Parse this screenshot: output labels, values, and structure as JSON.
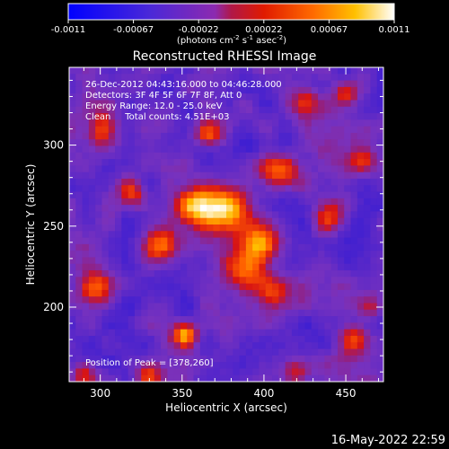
{
  "colorbar": {
    "ticks": [
      "-0.0011",
      "-0.00067",
      "-0.00022",
      "0.00022",
      "0.00067",
      "0.0011"
    ],
    "unit_prefix": "(photons cm",
    "unit_sup1": "-2",
    "unit_mid": " s",
    "unit_sup2": "-1",
    "unit_mid2": " asec",
    "unit_sup3": "-2",
    "unit_suffix": ")"
  },
  "chart_data": {
    "type": "heatmap",
    "title": "Reconstructed RHESSI Image",
    "xlabel": "Heliocentric X (arcsec)",
    "ylabel": "Heliocentric Y (arcsec)",
    "xlim": [
      281,
      473
    ],
    "ylim": [
      154,
      348
    ],
    "xticks": [
      "300",
      "350",
      "400",
      "450"
    ],
    "yticks": [
      "200",
      "250",
      "300"
    ],
    "colormap": "blue-purple-red-yellow-white",
    "color_range": [
      -0.0011,
      0.0011
    ],
    "peak": [
      378,
      260
    ],
    "annotations": [
      "26-Dec-2012 04:43:16.000 to 04:46:28.000",
      "Detectors: 3F 4F 5F 6F 7F 8F, Att 0",
      "Energy Range: 12.0 - 25.0 keV",
      "Clean     Total counts: 4.51E+03"
    ],
    "peak_label": "Position of Peak = [378,260]",
    "sources": [
      {
        "x": 378,
        "y": 260,
        "amp": 1.0,
        "r": 10
      },
      {
        "x": 358,
        "y": 262,
        "amp": 0.75,
        "r": 9
      },
      {
        "x": 395,
        "y": 240,
        "amp": 0.7,
        "r": 9
      },
      {
        "x": 410,
        "y": 282,
        "amp": 0.6,
        "r": 8
      },
      {
        "x": 390,
        "y": 224,
        "amp": 0.65,
        "r": 8
      },
      {
        "x": 405,
        "y": 208,
        "amp": 0.5,
        "r": 7
      },
      {
        "x": 335,
        "y": 238,
        "amp": 0.55,
        "r": 7
      },
      {
        "x": 352,
        "y": 183,
        "amp": 0.8,
        "r": 5
      },
      {
        "x": 296,
        "y": 212,
        "amp": 0.6,
        "r": 7
      },
      {
        "x": 290,
        "y": 158,
        "amp": 0.55,
        "r": 6
      },
      {
        "x": 330,
        "y": 158,
        "amp": 0.4,
        "r": 6
      },
      {
        "x": 366,
        "y": 307,
        "amp": 0.7,
        "r": 6
      },
      {
        "x": 300,
        "y": 310,
        "amp": 0.55,
        "r": 7
      },
      {
        "x": 320,
        "y": 270,
        "amp": 0.45,
        "r": 6
      },
      {
        "x": 455,
        "y": 180,
        "amp": 0.6,
        "r": 7
      },
      {
        "x": 465,
        "y": 200,
        "amp": 0.4,
        "r": 6
      },
      {
        "x": 450,
        "y": 330,
        "amp": 0.45,
        "r": 6
      },
      {
        "x": 425,
        "y": 328,
        "amp": 0.35,
        "r": 6
      },
      {
        "x": 440,
        "y": 255,
        "amp": 0.4,
        "r": 7
      },
      {
        "x": 420,
        "y": 160,
        "amp": 0.45,
        "r": 6
      },
      {
        "x": 460,
        "y": 290,
        "amp": 0.35,
        "r": 6
      }
    ]
  },
  "footer_timestamp": "16-May-2022 22:59"
}
